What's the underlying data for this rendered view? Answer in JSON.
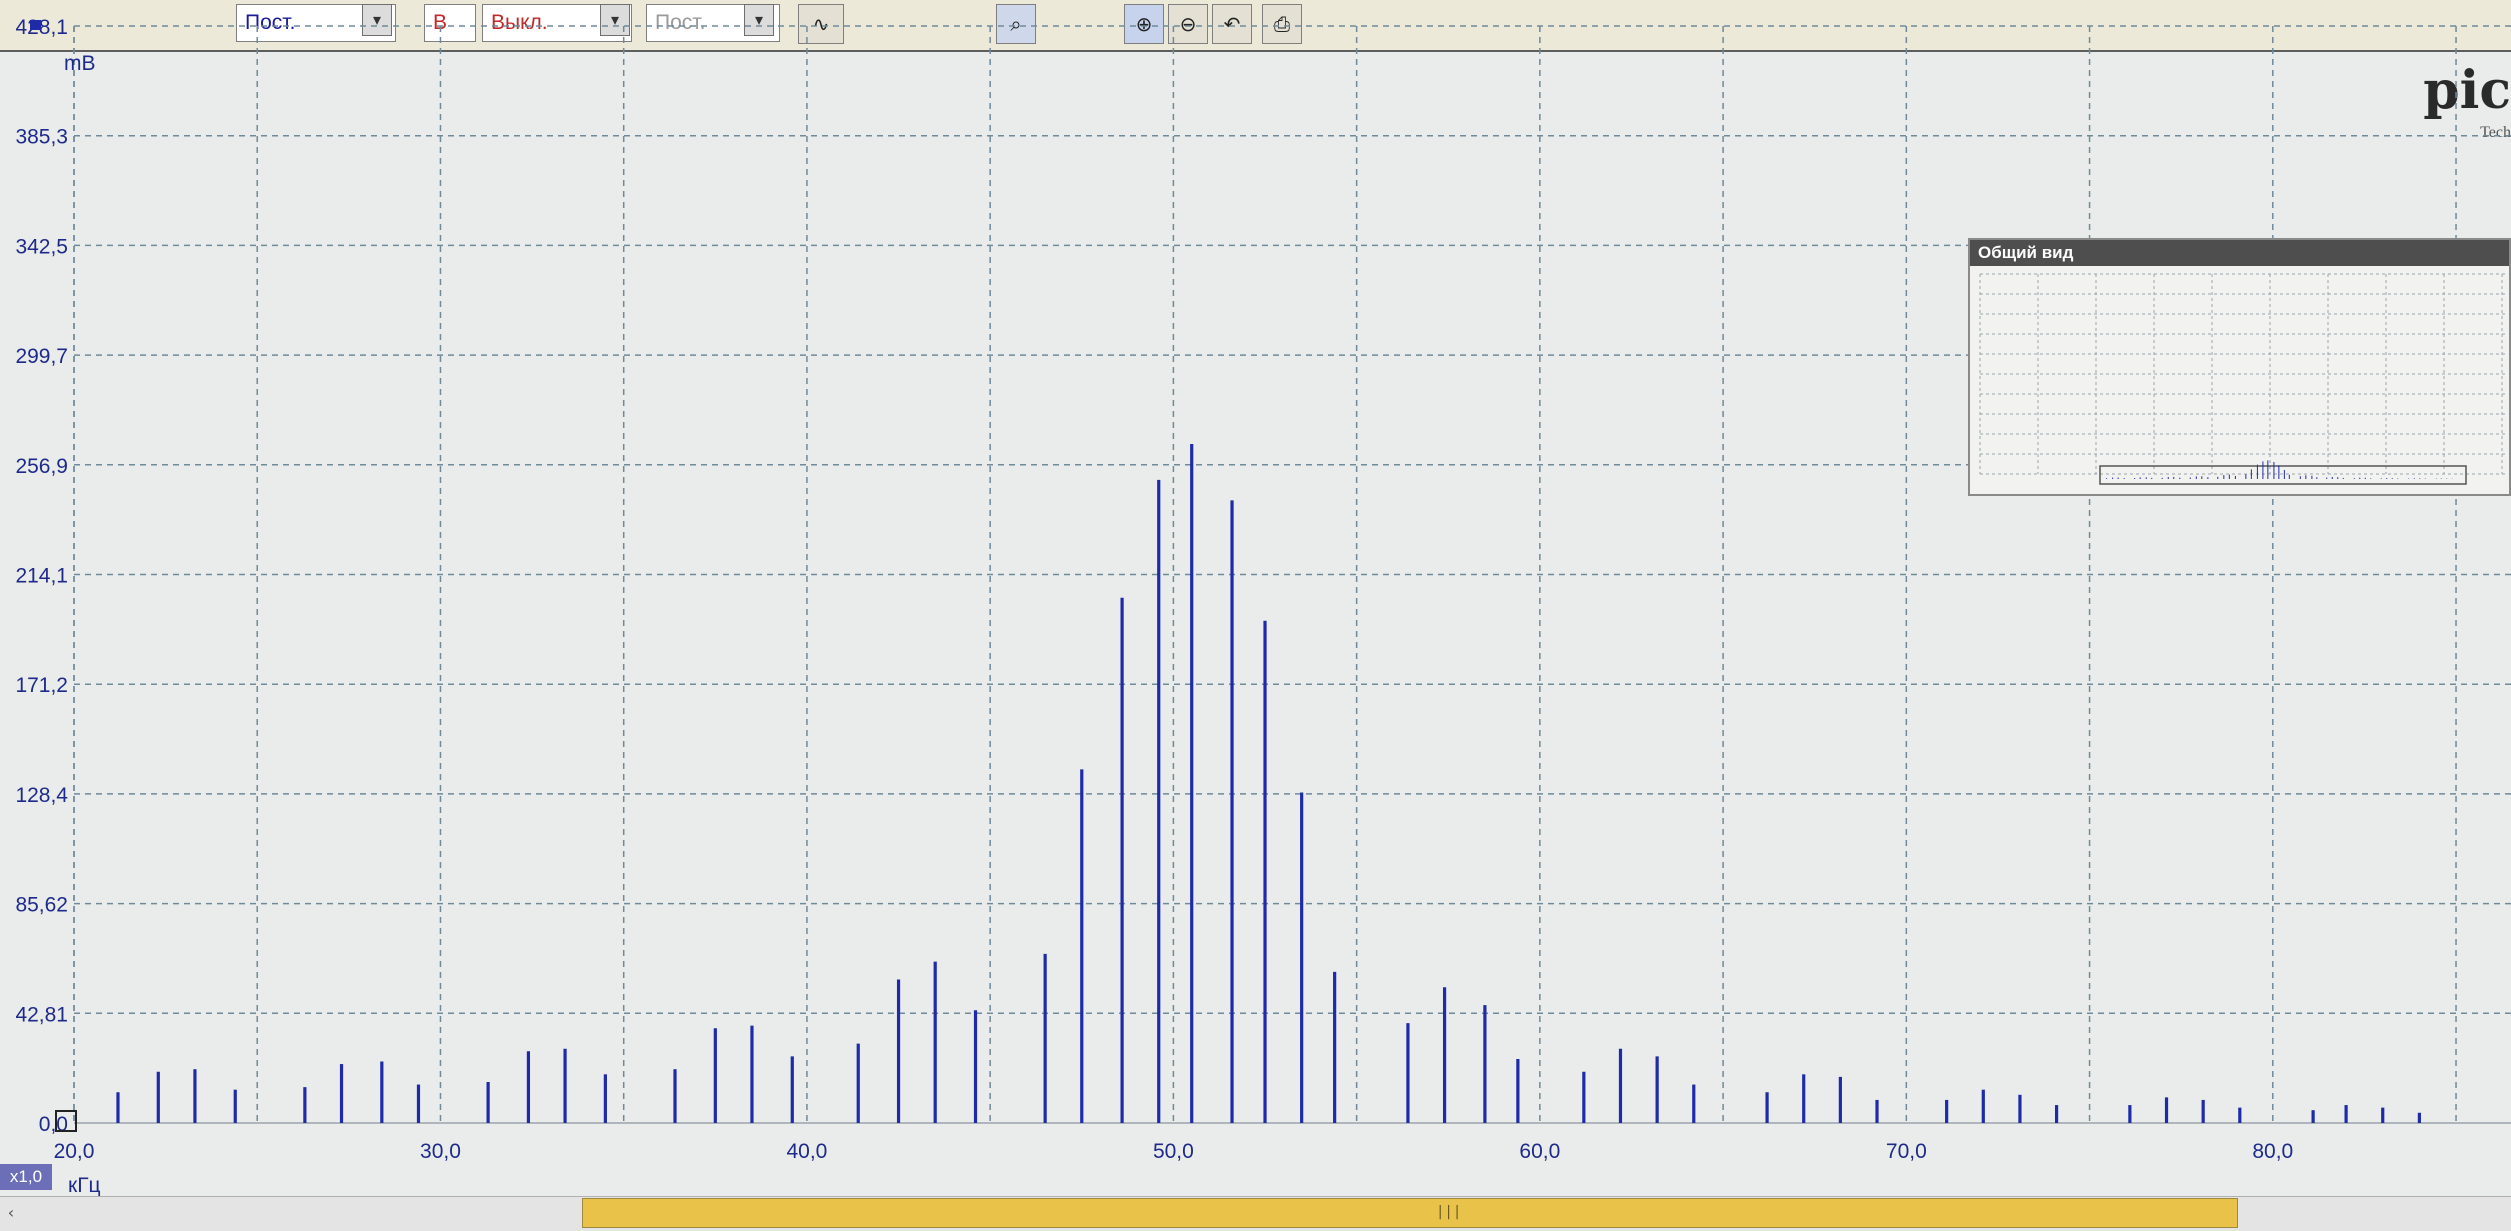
{
  "toolbar": {
    "coupling_1": "Пост.",
    "channel_b_label": "B",
    "channel_b_state": "Выкл.",
    "coupling_2": "Пост.",
    "dropdown_arrow": "▾",
    "probe_symbol": "∿"
  },
  "brand": {
    "logo": "pic",
    "subtitle": "Tech"
  },
  "overview": {
    "title": "Общий вид"
  },
  "status": {
    "zoom": "x1,0",
    "grip": "|||"
  },
  "colors": {
    "trace": "#1f2aa8",
    "grid": "#6f8a9a",
    "axis_text": "#1e2a8a",
    "background": "#e9ecea"
  },
  "chart_data": {
    "type": "bar",
    "title": "",
    "xlabel": "кГц",
    "ylabel": "mB",
    "xlim": [
      20.0,
      86.5
    ],
    "ylim": [
      0.0,
      428.1
    ],
    "y_tick_labels": [
      "0,0",
      "42,81",
      "85,62",
      "128,4",
      "171,2",
      "214,1",
      "256,9",
      "299,7",
      "342,5",
      "385,3",
      "428,1"
    ],
    "x_tick_values": [
      20.0,
      30.0,
      40.0,
      50.0,
      60.0,
      70.0,
      80.0
    ],
    "x_tick_labels": [
      "20,0",
      "30,0",
      "40,0",
      "50,0",
      "60,0",
      "70,0",
      "80,0"
    ],
    "grid": true,
    "series": [
      {
        "x": [
          21.2,
          22.3,
          23.3,
          24.4,
          26.3,
          27.3,
          28.4,
          29.4,
          31.3,
          32.4,
          33.4,
          34.5,
          36.4,
          37.5,
          38.5,
          39.6,
          41.4,
          42.5,
          43.5,
          44.6,
          46.5,
          47.5,
          48.6,
          49.6,
          50.5,
          51.6,
          52.5,
          53.5,
          54.4,
          56.4,
          57.4,
          58.5,
          59.4,
          61.2,
          62.2,
          63.2,
          64.2,
          66.2,
          67.2,
          68.2,
          69.2,
          71.1,
          72.1,
          73.1,
          74.1,
          76.1,
          77.1,
          78.1,
          79.1,
          81.1,
          82.0,
          83.0,
          84.0
        ],
        "values": [
          12,
          20,
          21,
          13,
          14,
          23,
          24,
          15,
          16,
          28,
          29,
          19,
          21,
          37,
          38,
          26,
          31,
          56,
          63,
          44,
          66,
          138,
          205,
          251,
          265,
          243,
          196,
          129,
          59,
          39,
          53,
          46,
          25,
          20,
          29,
          26,
          15,
          12,
          19,
          18,
          9,
          9,
          13,
          11,
          7,
          7,
          10,
          9,
          6,
          5,
          7,
          6,
          4
        ]
      }
    ]
  }
}
